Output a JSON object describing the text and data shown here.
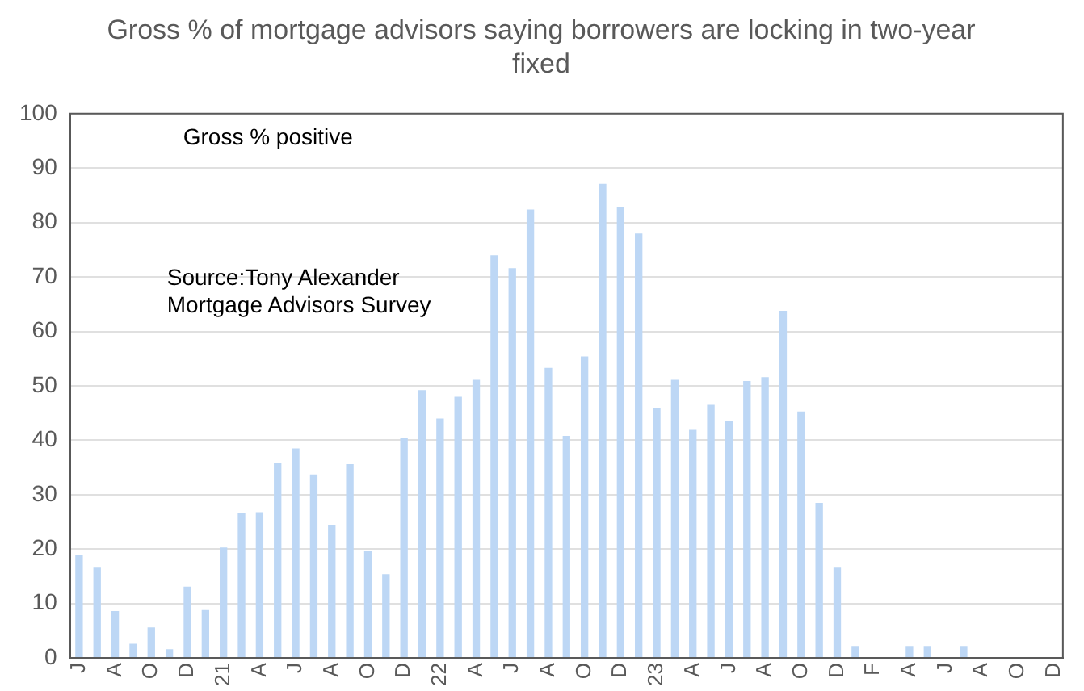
{
  "chart_data": {
    "type": "bar",
    "title": "Gross % of mortgage advisors saying borrowers are locking in two-year fixed",
    "categories": [
      "J",
      null,
      "A",
      null,
      "O",
      null,
      "D",
      null,
      "21",
      null,
      "A",
      null,
      "J",
      null,
      "A",
      null,
      "O",
      null,
      "D",
      null,
      "22",
      null,
      "A",
      null,
      "J",
      null,
      "A",
      null,
      "O",
      null,
      "D",
      null,
      "23",
      null,
      "A",
      null,
      "J",
      null,
      "A",
      null,
      "O",
      null,
      "D",
      null,
      "F",
      null,
      "A",
      null,
      "J",
      null,
      "A",
      null,
      "O",
      null,
      "D"
    ],
    "values": [
      18.9,
      16.5,
      8.5,
      2.5,
      5.5,
      1.5,
      13,
      8.7,
      20.2,
      26.5,
      26.7,
      35.7,
      38.4,
      33.6,
      24.4,
      35.5,
      19.5,
      15.3,
      40.4,
      49.1,
      43.9,
      47.9,
      51.0,
      73.9,
      71.5,
      82.3,
      53.2,
      40.7,
      55.3,
      87.0,
      82.8,
      77.9,
      45.8,
      51.0,
      41.8,
      46.4,
      43.4,
      50.8,
      51.5,
      63.7,
      45.2,
      28.4,
      16.5,
      2.1,
      0,
      0,
      2.1,
      2.1,
      0,
      2.1,
      0,
      0,
      0,
      0,
      0
    ],
    "color": "#bdd7f5",
    "ylim": [
      0,
      100
    ],
    "yticks": [
      0,
      10,
      20,
      30,
      40,
      50,
      60,
      70,
      80,
      90,
      100
    ],
    "grid": "y",
    "legend": false,
    "annotations": [
      "Gross % positive",
      "Source:Tony Alexander Mortgage Advisors Survey"
    ]
  }
}
